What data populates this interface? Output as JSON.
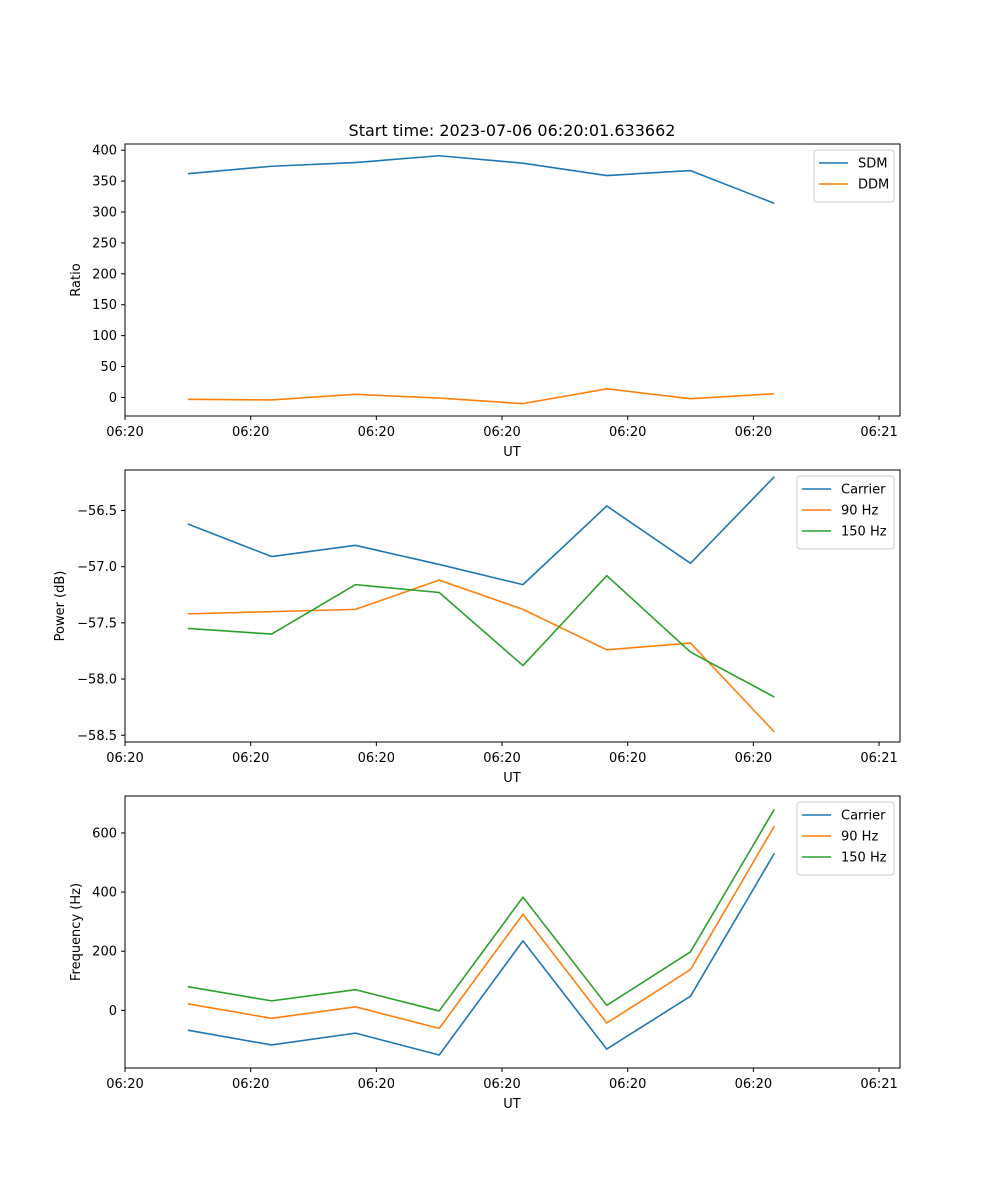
{
  "chart_data": [
    {
      "type": "line",
      "title": "Start time: 2023-07-06 06:20:01.633662",
      "xlabel": "UT",
      "ylabel": "Ratio",
      "xlim": [
        0,
        9.25
      ],
      "ylim": [
        -30,
        410
      ],
      "x": [
        0.75,
        1.75,
        2.75,
        3.75,
        4.75,
        5.75,
        6.75,
        7.75
      ],
      "x_ticks": [
        0,
        1.5,
        3,
        4.5,
        6,
        7.5,
        9
      ],
      "x_tick_labels": [
        "06:20",
        "06:20",
        "06:20",
        "06:20",
        "06:20",
        "06:20",
        "06:21"
      ],
      "y_ticks": [
        0,
        50,
        100,
        150,
        200,
        250,
        300,
        350,
        400
      ],
      "y_tick_labels": [
        "0",
        "50",
        "100",
        "150",
        "200",
        "250",
        "300",
        "350",
        "400"
      ],
      "legend_position": "top-right",
      "series": [
        {
          "name": "SDM",
          "color": "#1f77b4",
          "values": [
            362,
            374,
            380,
            391,
            379,
            359,
            367,
            314
          ]
        },
        {
          "name": "DDM",
          "color": "#ff7f0e",
          "values": [
            -3,
            -4,
            5,
            -1,
            -10,
            14,
            -2,
            6
          ]
        }
      ]
    },
    {
      "type": "line",
      "title": "",
      "xlabel": "UT",
      "ylabel": "Power (dB)",
      "xlim": [
        0,
        9.25
      ],
      "ylim": [
        -58.56,
        -56.14
      ],
      "x": [
        0.75,
        1.75,
        2.75,
        3.75,
        4.75,
        5.75,
        6.75,
        7.75
      ],
      "x_ticks": [
        0,
        1.5,
        3,
        4.5,
        6,
        7.5,
        9
      ],
      "x_tick_labels": [
        "06:20",
        "06:20",
        "06:20",
        "06:20",
        "06:20",
        "06:20",
        "06:21"
      ],
      "y_ticks": [
        -58.5,
        -58.0,
        -57.5,
        -57.0,
        -56.5
      ],
      "y_tick_labels": [
        "−58.5",
        "−58.0",
        "−57.5",
        "−57.0",
        "−56.5"
      ],
      "legend_position": "top-right",
      "series": [
        {
          "name": "Carrier",
          "color": "#1f77b4",
          "values": [
            -56.62,
            -56.91,
            -56.81,
            -56.98,
            -57.16,
            -56.46,
            -56.97,
            -56.2
          ]
        },
        {
          "name": "90 Hz",
          "color": "#ff7f0e",
          "values": [
            -57.42,
            -57.4,
            -57.38,
            -57.12,
            -57.38,
            -57.74,
            -57.68,
            -58.47
          ]
        },
        {
          "name": "150 Hz",
          "color": "#2ca02c",
          "values": [
            -57.55,
            -57.6,
            -57.16,
            -57.23,
            -57.88,
            -57.08,
            -57.76,
            -58.16
          ]
        }
      ]
    },
    {
      "type": "line",
      "title": "",
      "xlabel": "UT",
      "ylabel": "Frequency (Hz)",
      "xlim": [
        0,
        9.25
      ],
      "ylim": [
        -195,
        725
      ],
      "x": [
        0.75,
        1.75,
        2.75,
        3.75,
        4.75,
        5.75,
        6.75,
        7.75
      ],
      "x_ticks": [
        0,
        1.5,
        3,
        4.5,
        6,
        7.5,
        9
      ],
      "x_tick_labels": [
        "06:20",
        "06:20",
        "06:20",
        "06:20",
        "06:20",
        "06:20",
        "06:21"
      ],
      "y_ticks": [
        0,
        200,
        400,
        600
      ],
      "y_tick_labels": [
        "0",
        "200",
        "400",
        "600"
      ],
      "legend_position": "top-right",
      "series": [
        {
          "name": "Carrier",
          "color": "#1f77b4",
          "values": [
            -67,
            -117,
            -77,
            -151,
            235,
            -131,
            48,
            531
          ]
        },
        {
          "name": "90 Hz",
          "color": "#ff7f0e",
          "values": [
            22,
            -27,
            12,
            -61,
            325,
            -43,
            138,
            623
          ]
        },
        {
          "name": "150 Hz",
          "color": "#2ca02c",
          "values": [
            80,
            32,
            70,
            -2,
            383,
            17,
            198,
            680
          ]
        }
      ]
    }
  ]
}
